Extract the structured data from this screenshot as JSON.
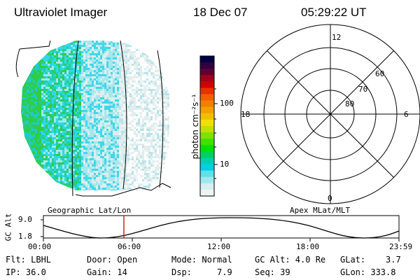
{
  "header": {
    "instrument": "Ultraviolet Imager",
    "date": "18 Dec 07",
    "time": "05:29:22 UT"
  },
  "colorbar": {
    "unit_label": "photon cm⁻²s⁻¹",
    "tick_labels": [
      "100",
      "10"
    ]
  },
  "polar_plot": {
    "mlt_labels": [
      "12",
      "18",
      "6",
      "0"
    ],
    "lat_labels": [
      "60",
      "70",
      "80"
    ]
  },
  "panel_titles": {
    "left": "Geographic Lat/Lon",
    "right": "Apex MLat/MLT"
  },
  "altitude_strip": {
    "ylabel": "GC Alt",
    "y_ticks": [
      "9.0",
      "1.8"
    ],
    "x_ticks": [
      "00:00",
      "06:00",
      "12:00",
      "18:00",
      "23:59"
    ],
    "marker_time": "05:29:22"
  },
  "footer": {
    "flt": "Flt: LBHL",
    "ip": "IP: 36.0",
    "door": "Door: Open",
    "gain": "Gain: 14",
    "mode": "Mode: Normal",
    "dsp": "Dsp:     7.9",
    "gcalt": "GC Alt: 4.0 Re",
    "seq": "Seq: 39",
    "glat": "GLat:    3.7",
    "glon": "GLon: 333.8"
  },
  "colors": {
    "marker": "#cc0000",
    "colorbar": [
      "#000040",
      "#300040",
      "#600030",
      "#a00020",
      "#d00000",
      "#e83000",
      "#f06000",
      "#f08000",
      "#f0a000",
      "#f0c000",
      "#f0e000",
      "#c0e000",
      "#80e000",
      "#40e000",
      "#00e000",
      "#00d060",
      "#00d0b0",
      "#00d0e0",
      "#60e0e8",
      "#a0e8ee",
      "#d8eef0",
      "#eef4f4"
    ]
  }
}
